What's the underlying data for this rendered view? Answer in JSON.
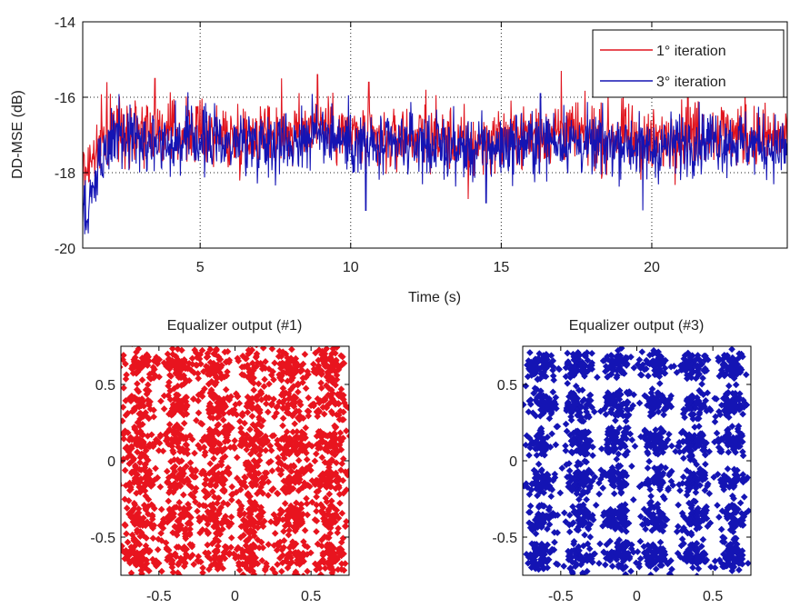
{
  "figure": {
    "background": "#ffffff",
    "axis_color": "#000000",
    "grid_color": "#222222"
  },
  "chart_data": [
    {
      "type": "line",
      "title": "",
      "xlabel": "Time (s)",
      "ylabel": "DD-MSE (dB)",
      "xlim": [
        1.1,
        24.5
      ],
      "ylim": [
        -20,
        -14
      ],
      "xticks": [
        5,
        10,
        15,
        20
      ],
      "yticks": [
        -20,
        -18,
        -16,
        -14
      ],
      "xtick_labels": [
        "5",
        "10",
        "15",
        "20"
      ],
      "ytick_labels": [
        "-20",
        "-18",
        "-16",
        "-14"
      ],
      "grid": true,
      "legend": "top-right",
      "series": [
        {
          "name": "1° iteration",
          "color": "#e0141e",
          "x": [
            1.1,
            2,
            3,
            4,
            5,
            6,
            7,
            8,
            9,
            10,
            11,
            12,
            13,
            14,
            15,
            16,
            17,
            18,
            19,
            20,
            21,
            22,
            23,
            24,
            24.5
          ],
          "y": [
            -18.0,
            -16.9,
            -16.8,
            -17.0,
            -16.9,
            -17.1,
            -16.9,
            -17.0,
            -16.7,
            -17.0,
            -17.2,
            -17.0,
            -17.1,
            -17.3,
            -17.1,
            -17.0,
            -16.9,
            -17.1,
            -17.0,
            -17.2,
            -17.0,
            -16.9,
            -17.0,
            -17.1,
            -17.2
          ],
          "peaks": [
            [
              1.9,
              -15.6
            ],
            [
              3.5,
              -15.5
            ],
            [
              7.7,
              -15.5
            ],
            [
              8.9,
              -15.4
            ],
            [
              10.6,
              -15.6
            ],
            [
              12.5,
              -15.8
            ],
            [
              17.0,
              -15.3
            ],
            [
              21.2,
              -15.5
            ],
            [
              23.1,
              -15.8
            ],
            [
              13.9,
              -18.7
            ]
          ]
        },
        {
          "name": "3° iteration",
          "color": "#1414b4",
          "x": [
            1.1,
            2,
            3,
            4,
            5,
            6,
            7,
            8,
            9,
            10,
            11,
            12,
            13,
            14,
            15,
            16,
            17,
            18,
            19,
            20,
            21,
            22,
            23,
            24,
            24.5
          ],
          "y": [
            -19.2,
            -17.1,
            -17.0,
            -17.2,
            -17.1,
            -17.2,
            -17.1,
            -17.2,
            -16.9,
            -17.2,
            -17.4,
            -17.2,
            -17.3,
            -17.4,
            -17.3,
            -17.2,
            -17.1,
            -17.3,
            -17.2,
            -17.4,
            -17.2,
            -17.1,
            -17.2,
            -17.3,
            -17.4
          ],
          "peaks": [
            [
              1.1,
              -19.3
            ],
            [
              10.5,
              -19.0
            ],
            [
              14.5,
              -18.8
            ],
            [
              19.7,
              -19.0
            ],
            [
              16.3,
              -15.9
            ]
          ]
        }
      ]
    },
    {
      "type": "scatter",
      "title": "Equalizer output (#1)",
      "xlabel": "",
      "ylabel": "",
      "xlim": [
        -0.75,
        0.75
      ],
      "ylim": [
        -0.75,
        0.75
      ],
      "xticks": [
        -0.5,
        0,
        0.5
      ],
      "yticks": [
        0.5,
        0,
        -0.5
      ],
      "xtick_labels": [
        "-0.5",
        "0",
        "0.5"
      ],
      "ytick_labels": [
        "0.5",
        "0",
        "-0.5"
      ],
      "marker": "diamond",
      "color": "#e8141e",
      "constellation": {
        "levels": [
          -0.625,
          -0.375,
          -0.125,
          0.125,
          0.375,
          0.625
        ],
        "spread": 0.11,
        "points": 2200
      }
    },
    {
      "type": "scatter",
      "title": "Equalizer output (#3)",
      "xlabel": "",
      "ylabel": "",
      "xlim": [
        -0.75,
        0.75
      ],
      "ylim": [
        -0.75,
        0.75
      ],
      "xticks": [
        -0.5,
        0,
        0.5
      ],
      "yticks": [
        0.5,
        0,
        -0.5
      ],
      "xtick_labels": [
        "-0.5",
        "0",
        "0.5"
      ],
      "ytick_labels": [
        "0.5",
        "0",
        "-0.5"
      ],
      "marker": "diamond",
      "color": "#1414b4",
      "constellation": {
        "levels": [
          -0.625,
          -0.375,
          -0.125,
          0.125,
          0.375,
          0.625
        ],
        "spread": 0.09,
        "points": 2200
      }
    }
  ]
}
